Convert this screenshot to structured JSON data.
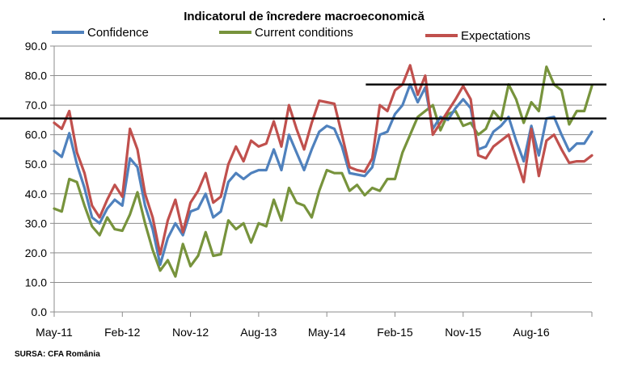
{
  "chart_data": {
    "type": "line",
    "title": "Indicatorul de încredere macroeconomică",
    "source": "SURSA: CFA România",
    "marker": ".",
    "x_tick_labels": [
      "May-11",
      "Feb-12",
      "Nov-12",
      "Aug-13",
      "May-14",
      "Feb-15",
      "Nov-15",
      "Aug-16"
    ],
    "x_tick_index": [
      0,
      9,
      18,
      27,
      36,
      45,
      54,
      63
    ],
    "ylim": [
      0,
      90
    ],
    "y_tick_labels": [
      "0.0",
      "10.0",
      "20.0",
      "30.0",
      "40.0",
      "50.0",
      "60.0",
      "70.0",
      "80.0",
      "90.0"
    ],
    "legend_position": "top",
    "reference_lines": [
      {
        "y": 65.5,
        "from_index": 0,
        "to_index": 72
      },
      {
        "y": 77,
        "from_index": 42,
        "to_index": 72
      }
    ],
    "series": [
      {
        "name": "Confidence",
        "color": "#4F81BD",
        "values": [
          54.5,
          52.5,
          60.5,
          50,
          42,
          32,
          30,
          35,
          38,
          36,
          52,
          49,
          36,
          28,
          16,
          25,
          30,
          26,
          34,
          35,
          40,
          32,
          34,
          44,
          47,
          45,
          47,
          48,
          48,
          55,
          48,
          60,
          54,
          48,
          55,
          61,
          63,
          62,
          56,
          47,
          46.5,
          46,
          49,
          60,
          61,
          67,
          70,
          77,
          71,
          76,
          62,
          66,
          65,
          69,
          72,
          69,
          55,
          56,
          61,
          63,
          66,
          58,
          51,
          63,
          53,
          65.5,
          66,
          60,
          54.5,
          57,
          57,
          61
        ]
      },
      {
        "name": "Current conditions",
        "color": "#77933C",
        "values": [
          35,
          34,
          45,
          44,
          36,
          29,
          26,
          32,
          28,
          27.5,
          33,
          40.5,
          30,
          21,
          14,
          17.5,
          12,
          23,
          15.5,
          19,
          27,
          19,
          19.5,
          31,
          28,
          30,
          23.5,
          30,
          29,
          38,
          31,
          42,
          37,
          36,
          32,
          41,
          48,
          47,
          47,
          41,
          43,
          39.5,
          42,
          41,
          45,
          45,
          54,
          60,
          66,
          68,
          70,
          61.5,
          67,
          68,
          63,
          64,
          60,
          62,
          68,
          65,
          77,
          72,
          64,
          71,
          68,
          83,
          77,
          75,
          63.5,
          68,
          68,
          76.5
        ]
      },
      {
        "name": "Expectations",
        "color": "#C0504D",
        "values": [
          64,
          62,
          68,
          54,
          47,
          36,
          32,
          38,
          43,
          39,
          62,
          55,
          40,
          32,
          19.5,
          31,
          38,
          27,
          37,
          41,
          47,
          37,
          39,
          50,
          56,
          51,
          58,
          56,
          57,
          64.5,
          56,
          70,
          62,
          55,
          64,
          71.5,
          71,
          70.5,
          60,
          49,
          48,
          47.5,
          52,
          70,
          68,
          75,
          77,
          83.5,
          73.5,
          80,
          60,
          64,
          68,
          72,
          76.5,
          72,
          53,
          52,
          56,
          58,
          60,
          52,
          44,
          62,
          46,
          58,
          60,
          55,
          50.5,
          51,
          51,
          53
        ]
      }
    ]
  }
}
